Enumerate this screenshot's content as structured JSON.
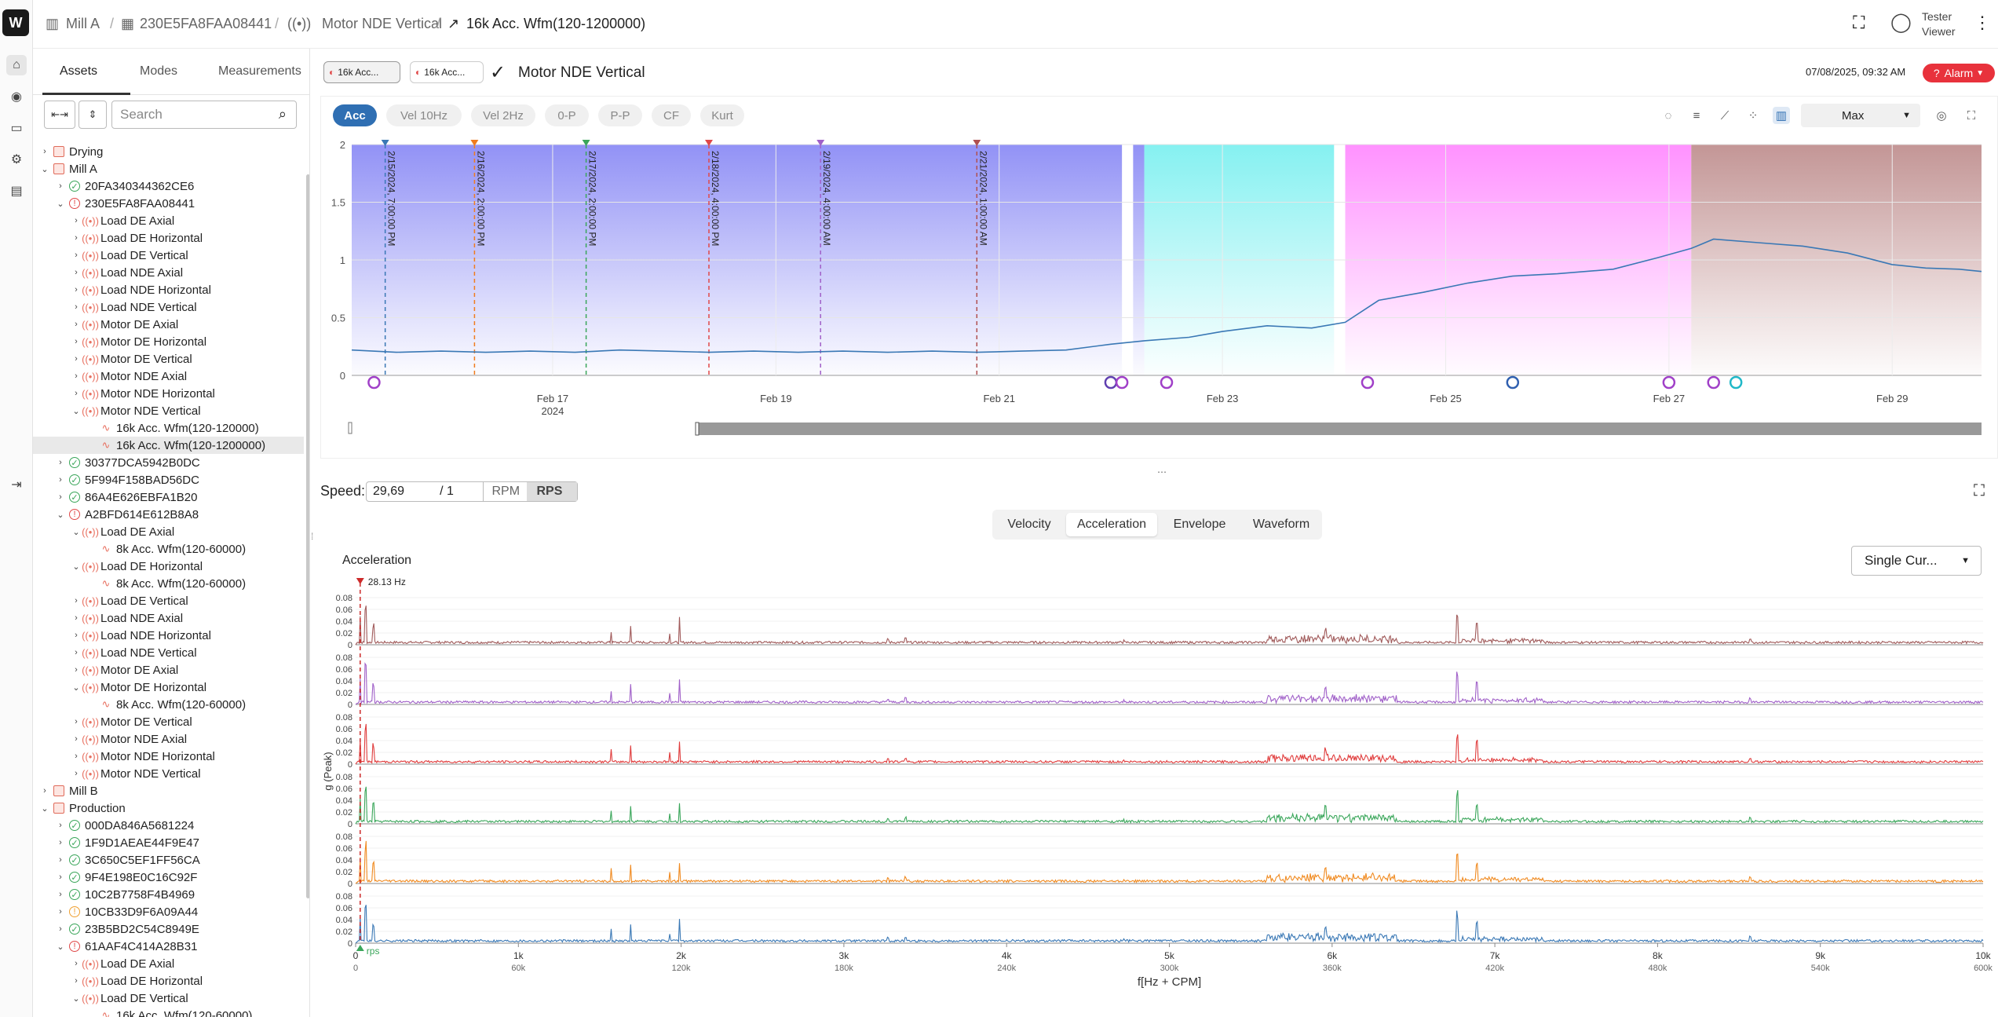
{
  "breadcrumb": [
    {
      "label": "Mill A"
    },
    {
      "label": "230E5FA8FAA08441"
    },
    {
      "label": "Motor NDE Vertical"
    },
    {
      "label": "16k Acc. Wfm(120-1200000)"
    }
  ],
  "user": {
    "name": "Tester",
    "role": "Viewer"
  },
  "sidebar": {
    "tabs": [
      "Assets",
      "Modes",
      "Measurements"
    ],
    "search_placeholder": "Search",
    "tree": [
      {
        "label": "Drying",
        "level": 0,
        "icon": "folder",
        "arrow": "right"
      },
      {
        "label": "Mill A",
        "level": 0,
        "icon": "folder",
        "arrow": "down"
      },
      {
        "label": "20FA340344362CE6",
        "level": 1,
        "icon": "ok",
        "arrow": "right"
      },
      {
        "label": "230E5FA8FAA08441",
        "level": 1,
        "icon": "bad",
        "arrow": "down"
      },
      {
        "label": "Load DE Axial",
        "level": 2,
        "icon": "sig",
        "arrow": "right"
      },
      {
        "label": "Load DE Horizontal",
        "level": 2,
        "icon": "sig",
        "arrow": "right"
      },
      {
        "label": "Load DE Vertical",
        "level": 2,
        "icon": "sig",
        "arrow": "right"
      },
      {
        "label": "Load NDE Axial",
        "level": 2,
        "icon": "sig",
        "arrow": "right"
      },
      {
        "label": "Load NDE Horizontal",
        "level": 2,
        "icon": "sig",
        "arrow": "right"
      },
      {
        "label": "Load NDE Vertical",
        "level": 2,
        "icon": "sig",
        "arrow": "right"
      },
      {
        "label": "Motor DE Axial",
        "level": 2,
        "icon": "sig",
        "arrow": "right"
      },
      {
        "label": "Motor DE Horizontal",
        "level": 2,
        "icon": "sig",
        "arrow": "right"
      },
      {
        "label": "Motor DE Vertical",
        "level": 2,
        "icon": "sig",
        "arrow": "right"
      },
      {
        "label": "Motor NDE Axial",
        "level": 2,
        "icon": "sig",
        "arrow": "right"
      },
      {
        "label": "Motor NDE Horizontal",
        "level": 2,
        "icon": "sig",
        "arrow": "right"
      },
      {
        "label": "Motor NDE Vertical",
        "level": 2,
        "icon": "sig",
        "arrow": "down"
      },
      {
        "label": "16k Acc. Wfm(120-120000)",
        "level": 3,
        "icon": "wave",
        "arrow": ""
      },
      {
        "label": "16k Acc. Wfm(120-1200000)",
        "level": 3,
        "icon": "wave",
        "arrow": "",
        "selected": true
      },
      {
        "label": "30377DCA5942B0DC",
        "level": 1,
        "icon": "ok",
        "arrow": "right"
      },
      {
        "label": "5F994F158BAD56DC",
        "level": 1,
        "icon": "ok",
        "arrow": "right"
      },
      {
        "label": "86A4E626EBFA1B20",
        "level": 1,
        "icon": "ok",
        "arrow": "right"
      },
      {
        "label": "A2BFD614E612B8A8",
        "level": 1,
        "icon": "bad",
        "arrow": "down"
      },
      {
        "label": "Load DE Axial",
        "level": 2,
        "icon": "sig",
        "arrow": "down"
      },
      {
        "label": "8k Acc. Wfm(120-60000)",
        "level": 3,
        "icon": "wave",
        "arrow": ""
      },
      {
        "label": "Load DE Horizontal",
        "level": 2,
        "icon": "sig",
        "arrow": "down"
      },
      {
        "label": "8k Acc. Wfm(120-60000)",
        "level": 3,
        "icon": "wave",
        "arrow": ""
      },
      {
        "label": "Load DE Vertical",
        "level": 2,
        "icon": "sig",
        "arrow": "right"
      },
      {
        "label": "Load NDE Axial",
        "level": 2,
        "icon": "sig",
        "arrow": "right"
      },
      {
        "label": "Load NDE Horizontal",
        "level": 2,
        "icon": "sig",
        "arrow": "right"
      },
      {
        "label": "Load NDE Vertical",
        "level": 2,
        "icon": "sig",
        "arrow": "right"
      },
      {
        "label": "Motor DE Axial",
        "level": 2,
        "icon": "sig",
        "arrow": "right"
      },
      {
        "label": "Motor DE Horizontal",
        "level": 2,
        "icon": "sig",
        "arrow": "down"
      },
      {
        "label": "8k Acc. Wfm(120-60000)",
        "level": 3,
        "icon": "wave",
        "arrow": ""
      },
      {
        "label": "Motor DE Vertical",
        "level": 2,
        "icon": "sig",
        "arrow": "right"
      },
      {
        "label": "Motor NDE Axial",
        "level": 2,
        "icon": "sig",
        "arrow": "right"
      },
      {
        "label": "Motor NDE Horizontal",
        "level": 2,
        "icon": "sig",
        "arrow": "right"
      },
      {
        "label": "Motor NDE Vertical",
        "level": 2,
        "icon": "sig",
        "arrow": "right"
      },
      {
        "label": "Mill B",
        "level": 0,
        "icon": "folder",
        "arrow": "right"
      },
      {
        "label": "Production",
        "level": 0,
        "icon": "folder",
        "arrow": "down"
      },
      {
        "label": "000DA846A5681224",
        "level": 1,
        "icon": "ok",
        "arrow": "right"
      },
      {
        "label": "1F9D1AEAE44F9E47",
        "level": 1,
        "icon": "ok",
        "arrow": "right"
      },
      {
        "label": "3C650C5EF1FF56CA",
        "level": 1,
        "icon": "ok",
        "arrow": "right"
      },
      {
        "label": "9F4E198E0C16C92F",
        "level": 1,
        "icon": "ok",
        "arrow": "right"
      },
      {
        "label": "10C2B7758F4B4969",
        "level": 1,
        "icon": "ok",
        "arrow": "right"
      },
      {
        "label": "10CB33D9F6A09A44",
        "level": 1,
        "icon": "warn",
        "arrow": "right"
      },
      {
        "label": "23B5BD2C54C8949E",
        "level": 1,
        "icon": "ok",
        "arrow": "right"
      },
      {
        "label": "61AAF4C414A28B31",
        "level": 1,
        "icon": "bad",
        "arrow": "down"
      },
      {
        "label": "Load DE Axial",
        "level": 2,
        "icon": "sig",
        "arrow": "right"
      },
      {
        "label": "Load DE Horizontal",
        "level": 2,
        "icon": "sig",
        "arrow": "right"
      },
      {
        "label": "Load DE Vertical",
        "level": 2,
        "icon": "sig",
        "arrow": "down"
      },
      {
        "label": "16k Acc. Wfm(120-60000)",
        "level": 3,
        "icon": "wave",
        "arrow": ""
      }
    ]
  },
  "header": {
    "chips": [
      "16k Acc...",
      "16k Acc..."
    ],
    "title": "Motor NDE Vertical",
    "timestamp": "07/08/2025, 09:32 AM",
    "alarm_label": "Alarm"
  },
  "trend": {
    "pills": [
      "Acc",
      "Vel 10Hz",
      "Vel 2Hz",
      "0-P",
      "P-P",
      "CF",
      "Kurt"
    ],
    "active_pill": "Acc",
    "stat_select": "Max",
    "toolbar_icons": [
      "comment-icon",
      "filter-icon",
      "measure-icon",
      "scatter-icon",
      "columns-icon"
    ],
    "chart_data": {
      "type": "line",
      "ylim": [
        0,
        2
      ],
      "yticks": [
        "0",
        "0.5",
        "1",
        "1.5",
        "2"
      ],
      "xticks": [
        {
          "label": "Feb 17",
          "sub": "2024",
          "day": 17
        },
        {
          "label": "Feb 19",
          "day": 19
        },
        {
          "label": "Feb 21",
          "day": 21
        },
        {
          "label": "Feb 23",
          "day": 23
        },
        {
          "label": "Feb 25",
          "day": 25
        },
        {
          "label": "Feb 27",
          "day": 27
        },
        {
          "label": "Feb 29",
          "day": 29
        }
      ],
      "xlim_day": [
        15.2,
        29.8
      ],
      "series": [
        {
          "color": "#3a78b5",
          "points": [
            [
              15.2,
              0.22
            ],
            [
              15.6,
              0.2
            ],
            [
              16,
              0.21
            ],
            [
              16.4,
              0.2
            ],
            [
              16.8,
              0.21
            ],
            [
              17.2,
              0.2
            ],
            [
              17.6,
              0.22
            ],
            [
              18,
              0.21
            ],
            [
              18.4,
              0.2
            ],
            [
              18.8,
              0.21
            ],
            [
              19.2,
              0.2
            ],
            [
              19.6,
              0.21
            ],
            [
              20,
              0.2
            ],
            [
              20.4,
              0.21
            ],
            [
              20.8,
              0.2
            ],
            [
              21.2,
              0.21
            ],
            [
              21.6,
              0.22
            ],
            [
              22,
              0.27
            ],
            [
              22.3,
              0.3
            ],
            [
              22.7,
              0.33
            ],
            [
              23,
              0.38
            ],
            [
              23.4,
              0.43
            ],
            [
              23.8,
              0.41
            ],
            [
              24.1,
              0.46
            ],
            [
              24.4,
              0.65
            ],
            [
              24.8,
              0.72
            ],
            [
              25.2,
              0.8
            ],
            [
              25.6,
              0.86
            ],
            [
              26,
              0.88
            ],
            [
              26.5,
              0.92
            ],
            [
              26.9,
              1.02
            ],
            [
              27.2,
              1.1
            ],
            [
              27.4,
              1.18
            ],
            [
              27.8,
              1.15
            ],
            [
              28.2,
              1.12
            ],
            [
              28.6,
              1.06
            ],
            [
              29,
              0.96
            ],
            [
              29.3,
              0.93
            ],
            [
              29.6,
              0.92
            ],
            [
              29.8,
              0.9
            ]
          ]
        }
      ],
      "markers": [
        {
          "label": "2/15/2024, 7:00:00 PM",
          "day": 15.5,
          "color": "#3a78b5"
        },
        {
          "label": "2/16/2024, 2:00:00 PM",
          "day": 16.3,
          "color": "#f07c1e"
        },
        {
          "label": "2/17/2024, 2:00:00 PM",
          "day": 17.3,
          "color": "#3aa65a"
        },
        {
          "label": "2/18/2024, 4:00:00 PM",
          "day": 18.4,
          "color": "#e04848"
        },
        {
          "label": "2/19/2024, 4:00:00 AM",
          "day": 19.4,
          "color": "#a060c8"
        },
        {
          "label": "2/21/2024, 1:00:00 AM",
          "day": 20.8,
          "color": "#b05050"
        }
      ],
      "bands": [
        {
          "from": 15.2,
          "to": 22.1,
          "color": "#8c8cf5"
        },
        {
          "from": 22.2,
          "to": 22.3,
          "color": "#8c8cf5"
        },
        {
          "from": 22.3,
          "to": 24.0,
          "color": "#7ff0f0"
        },
        {
          "from": 24.1,
          "to": 27.2,
          "color": "#ff8cff"
        },
        {
          "from": 27.2,
          "to": 29.8,
          "color": "#c09090"
        }
      ]
    }
  },
  "spectrum": {
    "speed_label": "Speed:",
    "speed_value": "29,69",
    "speed_div": "/ 1",
    "units": [
      "RPM",
      "RPS"
    ],
    "active_unit": "RPS",
    "tabs": [
      "Velocity",
      "Acceleration",
      "Envelope",
      "Waveform"
    ],
    "active_tab": "Acceleration",
    "cursor_select": "Single Cur...",
    "chart_data": {
      "type": "line",
      "title": "Acceleration",
      "ylabel": "g (Peak)",
      "xlabel": "f[Hz + CPM]",
      "cursor_label": "28.13 Hz",
      "rps_label": "rps",
      "xlim": [
        0,
        10000
      ],
      "ylim": [
        0,
        0.08
      ],
      "yticks": [
        "0",
        "0.02",
        "0.04",
        "0.06",
        "0.08"
      ],
      "xticks": [
        {
          "hz": "0",
          "cpm": "0",
          "v": 0
        },
        {
          "hz": "1k",
          "cpm": "60k",
          "v": 1000
        },
        {
          "hz": "2k",
          "cpm": "120k",
          "v": 2000
        },
        {
          "hz": "3k",
          "cpm": "180k",
          "v": 3000
        },
        {
          "hz": "4k",
          "cpm": "240k",
          "v": 4000
        },
        {
          "hz": "5k",
          "cpm": "300k",
          "v": 5000
        },
        {
          "hz": "6k",
          "cpm": "360k",
          "v": 6000
        },
        {
          "hz": "7k",
          "cpm": "420k",
          "v": 7000
        },
        {
          "hz": "8k",
          "cpm": "480k",
          "v": 8000
        },
        {
          "hz": "9k",
          "cpm": "540k",
          "v": 9000
        },
        {
          "hz": "10k",
          "cpm": "600k",
          "v": 10000
        }
      ],
      "peaks": [
        [
          28,
          0.055
        ],
        [
          60,
          0.07
        ],
        [
          110,
          0.035
        ],
        [
          1570,
          0.025
        ],
        [
          1690,
          0.035
        ],
        [
          1930,
          0.02
        ],
        [
          1990,
          0.045
        ],
        [
          3270,
          0.01
        ],
        [
          3380,
          0.012
        ],
        [
          4720,
          0.008
        ],
        [
          5960,
          0.03
        ],
        [
          6770,
          0.055
        ],
        [
          6890,
          0.04
        ],
        [
          8570,
          0.012
        ]
      ],
      "series": [
        {
          "color": "#a05a5a"
        },
        {
          "color": "#a060c8"
        },
        {
          "color": "#e03c3c"
        },
        {
          "color": "#3aa65a"
        },
        {
          "color": "#f08a20"
        },
        {
          "color": "#3a78b5"
        }
      ]
    }
  }
}
